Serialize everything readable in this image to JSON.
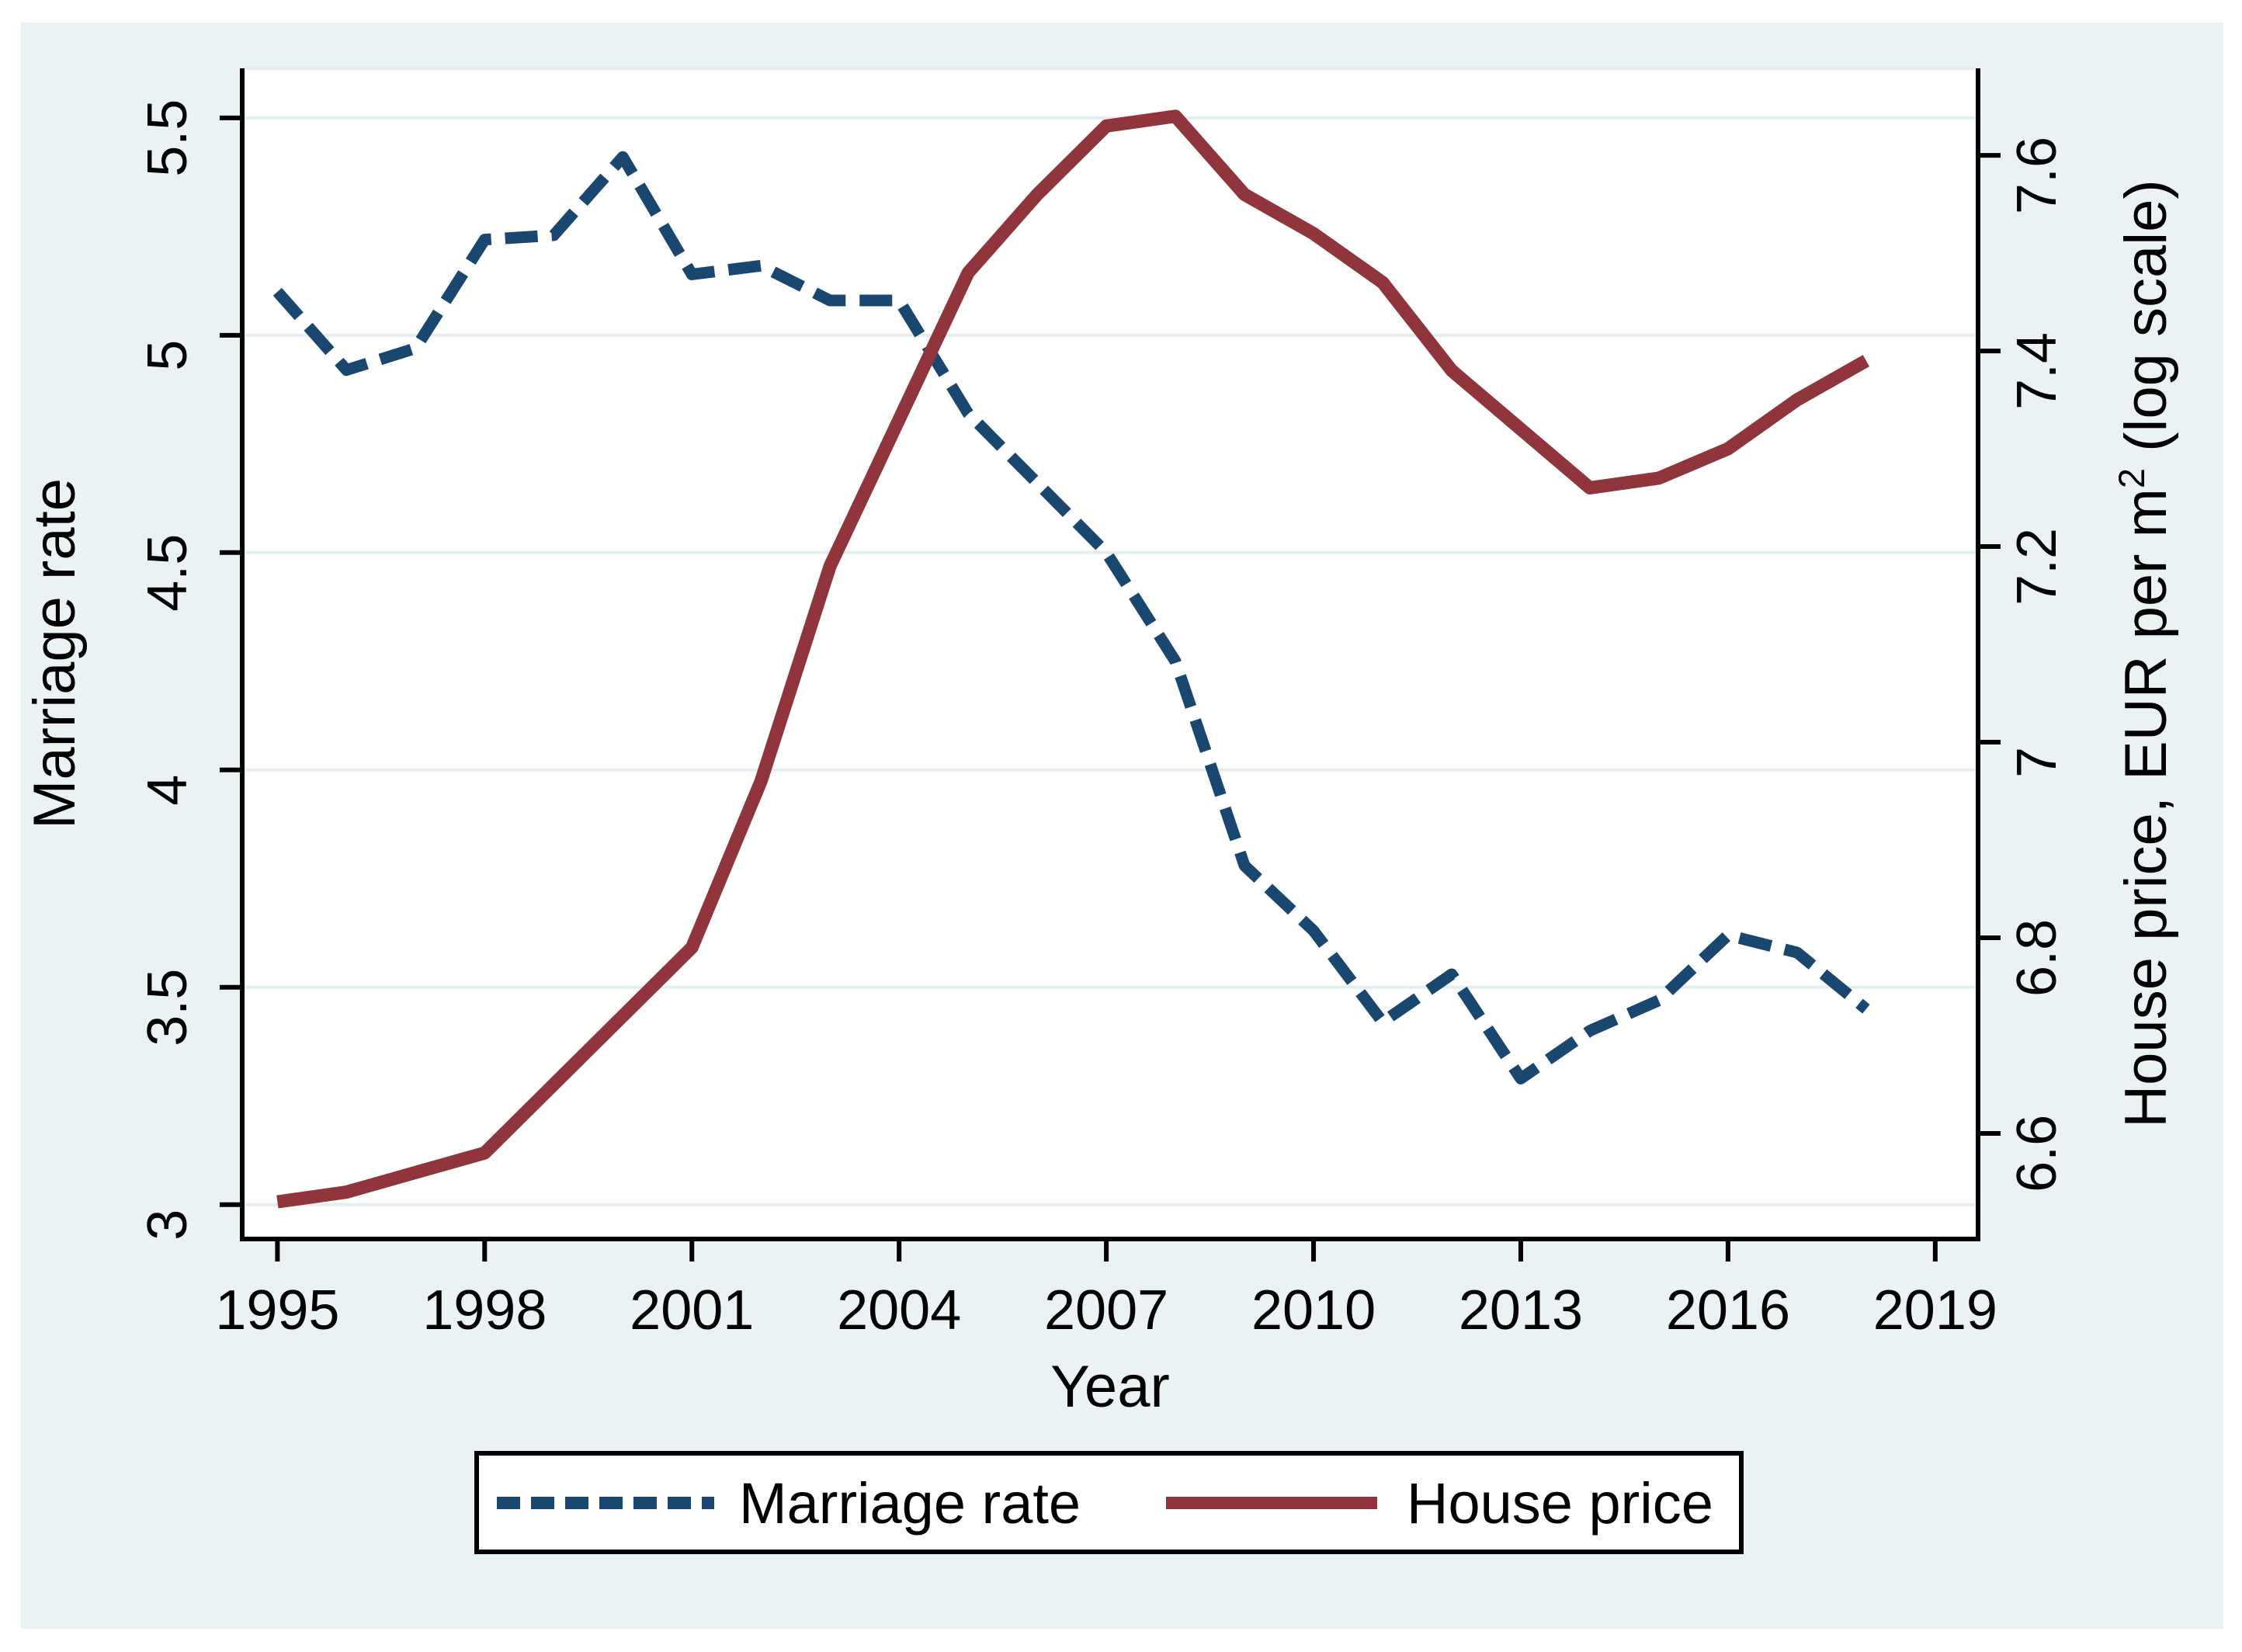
{
  "chart_data": {
    "type": "line",
    "x": [
      1995,
      1996,
      1997,
      1998,
      1999,
      2000,
      2001,
      2002,
      2003,
      2004,
      2005,
      2006,
      2007,
      2008,
      2009,
      2010,
      2011,
      2012,
      2013,
      2014,
      2015,
      2016,
      2017,
      2018
    ],
    "series": [
      {
        "name": "Marriage rate",
        "axis": "left",
        "color": "#1a476f",
        "style": "dashed",
        "values": [
          5.1,
          4.92,
          4.97,
          5.22,
          5.23,
          5.41,
          5.14,
          5.16,
          5.08,
          5.08,
          4.82,
          4.66,
          4.5,
          4.25,
          3.78,
          3.63,
          3.42,
          3.53,
          3.29,
          3.4,
          3.47,
          3.62,
          3.58,
          3.45
        ]
      },
      {
        "name": "House price",
        "axis": "right",
        "color": "#90353b",
        "style": "solid",
        "values": [
          6.53,
          6.54,
          6.56,
          6.58,
          6.65,
          6.72,
          6.79,
          6.96,
          7.18,
          7.33,
          7.48,
          7.56,
          7.63,
          7.64,
          7.56,
          7.52,
          7.47,
          7.38,
          7.32,
          7.26,
          7.27,
          7.3,
          7.35,
          7.39
        ]
      }
    ],
    "x_axis": {
      "title": "Year",
      "tick_labels": [
        "1995",
        "1998",
        "2001",
        "2004",
        "2007",
        "2010",
        "2013",
        "2016",
        "2019"
      ],
      "tick_values": [
        1995,
        1998,
        2001,
        2004,
        2007,
        2010,
        2013,
        2016,
        2019
      ],
      "range": [
        1994.49,
        2019.62
      ],
      "grid": false
    },
    "left_axis": {
      "title": "Marriage rate",
      "tick_labels": [
        "5.5",
        "5",
        "4.5",
        "4",
        "3.5",
        "3"
      ],
      "tick_values": [
        5.5,
        5.0,
        4.5,
        4.0,
        3.5,
        3.0
      ],
      "range": [
        2.921,
        5.614
      ],
      "grid": true
    },
    "right_axis": {
      "title_main": "House price, EUR per m",
      "title_sup": "2",
      "title_tail": " (log scale)",
      "tick_labels": [
        "7.6",
        "7.4",
        "7.2",
        "7",
        "6.8",
        "6.6"
      ],
      "tick_values": [
        7.6,
        7.4,
        7.2,
        7.0,
        6.8,
        6.6
      ],
      "range": [
        6.492,
        7.689
      ],
      "grid": false
    },
    "legend": [
      {
        "label": "Marriage rate",
        "color": "#1a476f",
        "style": "dashed"
      },
      {
        "label": "House price",
        "color": "#90353b",
        "style": "solid"
      }
    ],
    "colors": {
      "page": "#ffffff",
      "background": "#eaf2f3",
      "plot": "#ffffff",
      "grid": "#e4edf0",
      "axis": "#000000"
    }
  }
}
